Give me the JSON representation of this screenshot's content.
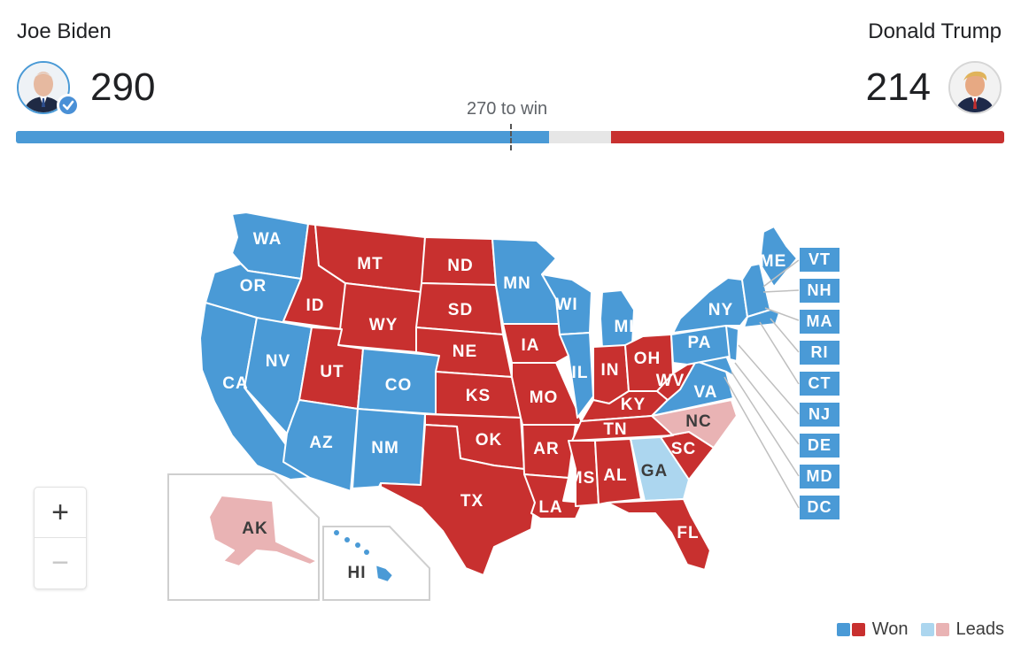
{
  "candidates": {
    "dem": {
      "name": "Joe Biden",
      "votes": "290",
      "color": "#4a9ad6",
      "winner": true
    },
    "rep": {
      "name": "Donald Trump",
      "votes": "214",
      "color": "#c8302f"
    }
  },
  "threshold_label": "270 to win",
  "bar": {
    "dem_electoral_votes": 290,
    "rep_electoral_votes": 214,
    "total_electoral_votes": 538,
    "threshold": 270
  },
  "states": {
    "WA": "WA",
    "OR": "OR",
    "CA": "CA",
    "NV": "NV",
    "ID": "ID",
    "MT": "MT",
    "WY": "WY",
    "UT": "UT",
    "AZ": "AZ",
    "CO": "CO",
    "NM": "NM",
    "ND": "ND",
    "SD": "SD",
    "NE": "NE",
    "KS": "KS",
    "OK": "OK",
    "TX": "TX",
    "MN": "MN",
    "IA": "IA",
    "MO": "MO",
    "AR": "AR",
    "LA": "LA",
    "WI": "WI",
    "IL": "IL",
    "MI": "MI",
    "IN": "IN",
    "OH": "OH",
    "KY": "KY",
    "TN": "TN",
    "MS": "MS",
    "AL": "AL",
    "GA": "GA",
    "FL": "FL",
    "SC": "SC",
    "NC": "NC",
    "VA": "VA",
    "WV": "WV",
    "PA": "PA",
    "NY": "NY",
    "ME": "ME",
    "AK": "AK",
    "HI": "HI"
  },
  "small_states": [
    "VT",
    "NH",
    "MA",
    "RI",
    "CT",
    "NJ",
    "DE",
    "MD",
    "DC"
  ],
  "zoom": {
    "in": "+",
    "out": "−"
  },
  "legend": {
    "won_label": "Won",
    "leads_label": "Leads",
    "colors": {
      "dem_won": "#4a9ad6",
      "rep_won": "#c8302f",
      "dem_leads": "#acd6ef",
      "rep_leads": "#e9b3b4"
    }
  }
}
